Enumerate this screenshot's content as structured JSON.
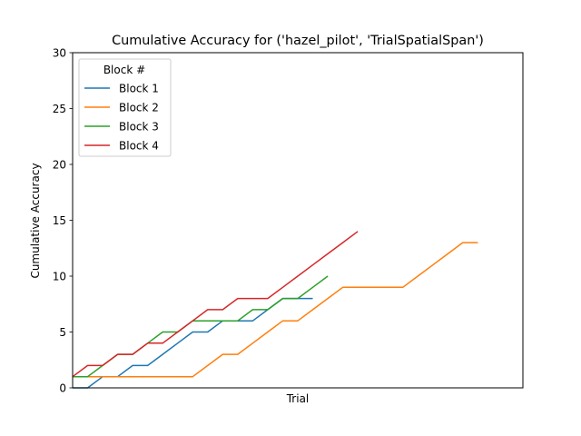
{
  "chart_data": {
    "type": "line",
    "title": "Cumulative Accuracy for ('hazel_pilot', 'TrialSpatialSpan')",
    "xlabel": "Trial",
    "ylabel": "Cumulative Accuracy",
    "xlim": [
      0,
      30
    ],
    "ylim": [
      0,
      30
    ],
    "yticks": [
      "0",
      "5",
      "10",
      "15",
      "20",
      "25",
      "30"
    ],
    "xticks": [],
    "grid": false,
    "legend": {
      "title": "Block #",
      "position": "top-left"
    },
    "series": [
      {
        "name": "Block 1",
        "color": "#1f77b4",
        "x": [
          0,
          1,
          2,
          3,
          4,
          5,
          6,
          7,
          8,
          9,
          10,
          11,
          12,
          13,
          14,
          15,
          16
        ],
        "y": [
          0,
          0,
          1,
          1,
          2,
          2,
          3,
          4,
          5,
          5,
          6,
          6,
          6,
          7,
          8,
          8,
          8
        ]
      },
      {
        "name": "Block 2",
        "color": "#ff7f0e",
        "x": [
          0,
          1,
          2,
          3,
          4,
          5,
          6,
          7,
          8,
          9,
          10,
          11,
          12,
          13,
          14,
          15,
          16,
          17,
          18,
          19,
          20,
          21,
          22,
          23,
          24,
          25,
          26,
          27
        ],
        "y": [
          1,
          1,
          1,
          1,
          1,
          1,
          1,
          1,
          1,
          2,
          3,
          3,
          4,
          5,
          6,
          6,
          7,
          8,
          9,
          9,
          9,
          9,
          9,
          10,
          11,
          12,
          13,
          13
        ]
      },
      {
        "name": "Block 3",
        "color": "#2ca02c",
        "x": [
          0,
          1,
          2,
          3,
          4,
          5,
          6,
          7,
          8,
          9,
          10,
          11,
          12,
          13,
          14,
          15,
          16,
          17
        ],
        "y": [
          1,
          1,
          2,
          3,
          3,
          4,
          5,
          5,
          6,
          6,
          6,
          6,
          7,
          7,
          8,
          8,
          9,
          10
        ]
      },
      {
        "name": "Block 4",
        "color": "#d62728",
        "x": [
          0,
          1,
          2,
          3,
          4,
          5,
          6,
          7,
          8,
          9,
          10,
          11,
          12,
          13,
          14,
          15,
          16,
          17,
          18,
          19
        ],
        "y": [
          1,
          2,
          2,
          3,
          3,
          4,
          4,
          5,
          6,
          7,
          7,
          8,
          8,
          8,
          9,
          10,
          11,
          12,
          13,
          14
        ]
      }
    ]
  }
}
